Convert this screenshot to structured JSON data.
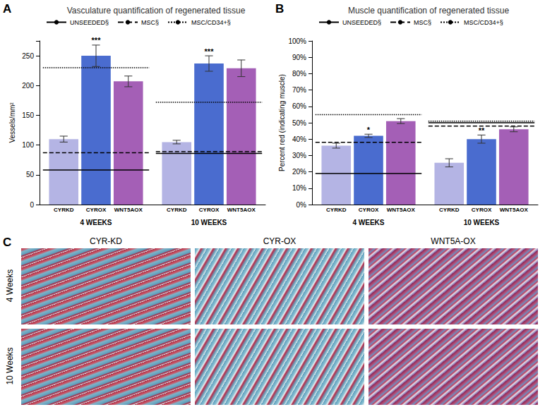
{
  "chart_data": [
    {
      "type": "bar",
      "panel_label": "A",
      "title": "Vasculature quantification of regenerated tissue",
      "y_label": "Vessels/mm²",
      "categories": [
        "4 WEEKS",
        "10 WEEKS"
      ],
      "series": [
        {
          "name": "CYRKD",
          "type": "bar",
          "color": "#b4b4e4",
          "values": [
            110,
            105
          ],
          "errors": [
            5,
            3
          ]
        },
        {
          "name": "CYROX",
          "type": "bar",
          "color": "#4a6ccf",
          "values": [
            250,
            237
          ],
          "errors": [
            18,
            13
          ],
          "annotations": [
            "***",
            "***"
          ]
        },
        {
          "name": "WNT5AOX",
          "type": "bar",
          "color": "#a45fb6",
          "values": [
            207,
            229
          ],
          "errors": [
            9,
            14
          ]
        },
        {
          "name": "UNSEEDED§",
          "type": "line",
          "line_style": "solid",
          "color": "#000000",
          "values": [
            58,
            86
          ]
        },
        {
          "name": "MSC§",
          "type": "line",
          "line_style": "dashed",
          "color": "#000000",
          "values": [
            87,
            89
          ]
        },
        {
          "name": "MSC/CD34+§",
          "type": "line",
          "line_style": "dotted",
          "color": "#000000",
          "values": [
            230,
            172
          ]
        }
      ],
      "ylim": [
        0,
        275
      ],
      "yticks": [
        0,
        50,
        100,
        150,
        200,
        250
      ],
      "grid": false,
      "legend": "top"
    },
    {
      "type": "bar",
      "panel_label": "B",
      "title": "Muscle quantification of regenerated tissue",
      "y_label": "Percent red (indicating muscle)",
      "categories": [
        "4 WEEKS",
        "10 WEEKS"
      ],
      "series": [
        {
          "name": "CYRKD",
          "type": "bar",
          "color": "#b4b4e4",
          "values": [
            36,
            25.5
          ],
          "errors": [
            1.5,
            2.5
          ]
        },
        {
          "name": "CYROX",
          "type": "bar",
          "color": "#4a6ccf",
          "values": [
            42,
            40
          ],
          "errors": [
            1,
            2.5
          ],
          "annotations": [
            "*",
            "**"
          ]
        },
        {
          "name": "WNT5AOX",
          "type": "bar",
          "color": "#a45fb6",
          "values": [
            51,
            46
          ],
          "errors": [
            1.5,
            1.5
          ]
        },
        {
          "name": "UNSEEDED§",
          "type": "line",
          "line_style": "solid",
          "color": "#000000",
          "values": [
            19,
            50
          ]
        },
        {
          "name": "MSC§",
          "type": "line",
          "line_style": "dashed",
          "color": "#000000",
          "values": [
            38,
            48
          ]
        },
        {
          "name": "MSC/CD34+§",
          "type": "line",
          "line_style": "dotted",
          "color": "#000000",
          "values": [
            55,
            51
          ]
        }
      ],
      "ylim": [
        0,
        100
      ],
      "yticks": [
        {
          "value": 0,
          "label": "0%"
        },
        {
          "value": 10,
          "label": "10%"
        },
        {
          "value": 20,
          "label": "20%"
        },
        {
          "value": 30,
          "label": "30%"
        },
        {
          "value": 40,
          "label": "40%"
        },
        {
          "value": 50,
          "label": "50%"
        },
        {
          "value": 60,
          "label": "60%"
        },
        {
          "value": 70,
          "label": "70%"
        },
        {
          "value": 80,
          "label": "80%"
        },
        {
          "value": 90,
          "label": "90%"
        },
        {
          "value": 100,
          "label": "100%"
        }
      ],
      "grid": false,
      "legend": "top"
    }
  ],
  "image_panel": {
    "panel_label": "C",
    "columns": [
      "CYR-KD",
      "CYR-OX",
      "WNT5A-OX"
    ],
    "rows": [
      "4 Weeks",
      "10 Weeks"
    ]
  }
}
